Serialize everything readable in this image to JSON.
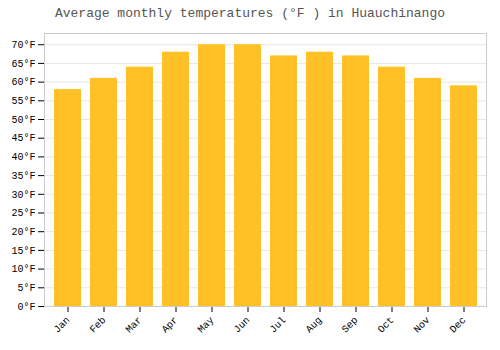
{
  "chart_data": {
    "type": "bar",
    "title": "Average monthly temperatures (°F ) in Huauchinango",
    "categories": [
      "Jan",
      "Feb",
      "Mar",
      "Apr",
      "May",
      "Jun",
      "Jul",
      "Aug",
      "Sep",
      "Oct",
      "Nov",
      "Dec"
    ],
    "values": [
      58,
      61,
      64,
      68,
      70,
      70,
      67,
      68,
      67,
      64,
      61,
      59
    ],
    "color": "#FFC125",
    "ylim": [
      0,
      73
    ],
    "yticks": [
      {
        "value": 0,
        "label": "0°F"
      },
      {
        "value": 5,
        "label": "5°F"
      },
      {
        "value": 10,
        "label": "10°F"
      },
      {
        "value": 15,
        "label": "15°F"
      },
      {
        "value": 20,
        "label": "20°F"
      },
      {
        "value": 25,
        "label": "25°F"
      },
      {
        "value": 30,
        "label": "30°F"
      },
      {
        "value": 35,
        "label": "35°F"
      },
      {
        "value": 40,
        "label": "40°F"
      },
      {
        "value": 45,
        "label": "45°F"
      },
      {
        "value": 50,
        "label": "50°F"
      },
      {
        "value": 55,
        "label": "55°F"
      },
      {
        "value": 60,
        "label": "60°F"
      },
      {
        "value": 65,
        "label": "65°F"
      },
      {
        "value": 70,
        "label": "70°F"
      }
    ],
    "grid": true
  }
}
